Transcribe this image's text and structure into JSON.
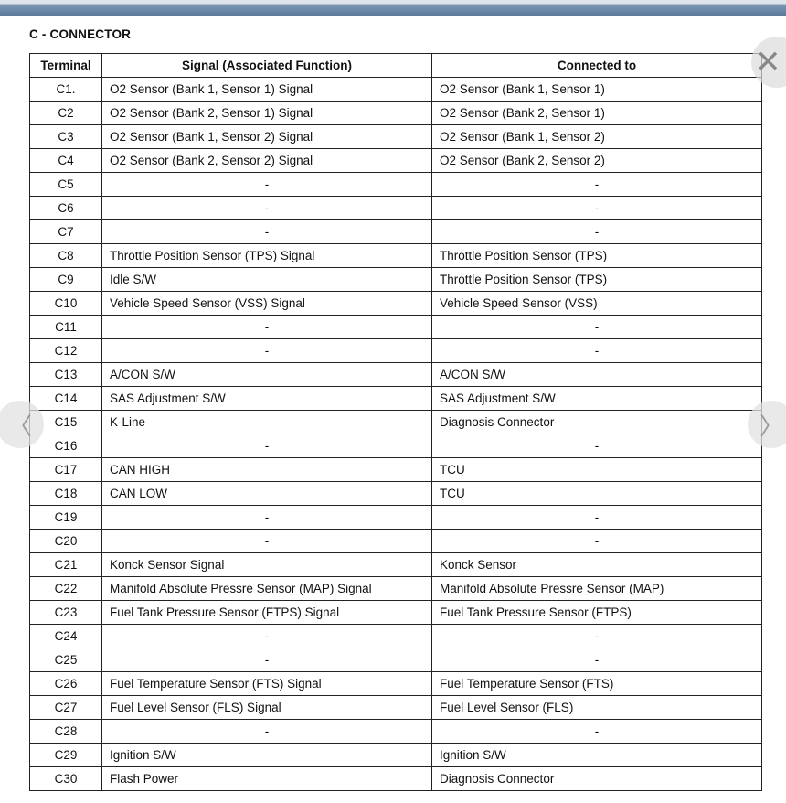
{
  "title": "C - CONNECTOR",
  "headers": [
    "Terminal",
    "Signal (Associated Function)",
    "Connected to"
  ],
  "rows": [
    [
      "C1.",
      "O2 Sensor (Bank 1, Sensor 1) Signal",
      "O2 Sensor (Bank 1, Sensor 1)"
    ],
    [
      "C2",
      "O2 Sensor (Bank 2, Sensor 1) Signal",
      "O2 Sensor (Bank 2, Sensor 1)"
    ],
    [
      "C3",
      "O2 Sensor (Bank 1, Sensor 2) Signal",
      "O2 Sensor (Bank 1, Sensor 2)"
    ],
    [
      "C4",
      "O2 Sensor (Bank 2, Sensor 2) Signal",
      "O2 Sensor (Bank 2, Sensor 2)"
    ],
    [
      "C5",
      "-",
      "-"
    ],
    [
      "C6",
      "-",
      "-"
    ],
    [
      "C7",
      "-",
      "-"
    ],
    [
      "C8",
      "Throttle Position Sensor (TPS) Signal",
      "Throttle Position Sensor (TPS)"
    ],
    [
      "C9",
      "Idle S/W",
      "Throttle Position Sensor (TPS)"
    ],
    [
      "C10",
      "Vehicle Speed Sensor (VSS) Signal",
      "Vehicle Speed Sensor (VSS)"
    ],
    [
      "C11",
      "-",
      "-"
    ],
    [
      "C12",
      "-",
      "-"
    ],
    [
      "C13",
      "A/CON S/W",
      "A/CON S/W"
    ],
    [
      "C14",
      "SAS Adjustment S/W",
      "SAS Adjustment S/W"
    ],
    [
      "C15",
      "K-Line",
      "Diagnosis Connector"
    ],
    [
      "C16",
      "-",
      "-"
    ],
    [
      "C17",
      "CAN HIGH",
      "TCU"
    ],
    [
      "C18",
      "CAN LOW",
      "TCU"
    ],
    [
      "C19",
      "-",
      "-"
    ],
    [
      "C20",
      "-",
      "-"
    ],
    [
      "C21",
      "Konck Sensor Signal",
      "Konck Sensor"
    ],
    [
      "C22",
      "Manifold Absolute Pressre Sensor (MAP) Signal",
      "Manifold Absolute Pressre Sensor (MAP)"
    ],
    [
      "C23",
      "Fuel Tank Pressure Sensor (FTPS) Signal",
      "Fuel Tank Pressure Sensor (FTPS)"
    ],
    [
      "C24",
      "-",
      "-"
    ],
    [
      "C25",
      "-",
      "-"
    ],
    [
      "C26",
      "Fuel Temperature Sensor (FTS) Signal",
      "Fuel Temperature Sensor (FTS)"
    ],
    [
      "C27",
      "Fuel Level Sensor (FLS) Signal",
      "Fuel Level Sensor (FLS)"
    ],
    [
      "C28",
      "-",
      "-"
    ],
    [
      "C29",
      "Ignition S/W",
      "Ignition S/W"
    ],
    [
      "C30",
      "Flash Power",
      "Diagnosis Connector"
    ]
  ],
  "icons": {
    "close": "close-icon",
    "prev": "chevron-left-icon",
    "next": "chevron-right-icon"
  },
  "colors": {
    "toolbar": "#5d7b9c"
  }
}
